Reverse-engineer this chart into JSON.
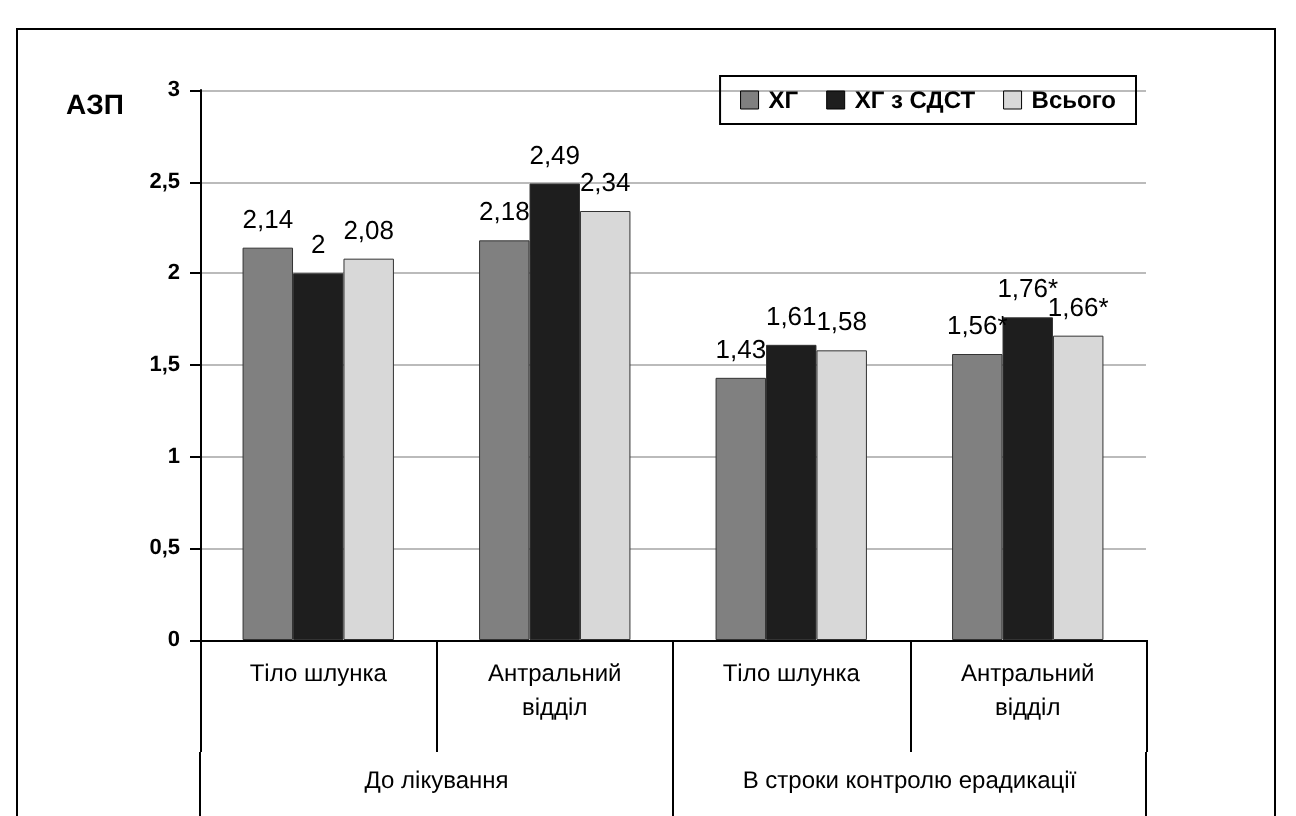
{
  "chart_data": {
    "type": "bar",
    "ylabel": "АЗП",
    "categories": [
      "Тіло шлунка",
      "Антральний відділ",
      "Тіло шлунка",
      "Антральний відділ"
    ],
    "annotations": [
      "До лікування",
      "В строки контролю ерадикації"
    ],
    "series": [
      {
        "name": "ХГ",
        "color": "#808080",
        "values": [
          2.14,
          2.18,
          1.43,
          1.56
        ],
        "value_labels": [
          "2,14",
          "2,18",
          "1,43",
          "1,56*"
        ]
      },
      {
        "name": "ХГ з СДСТ",
        "color": "#1e1e1e",
        "values": [
          2,
          2.49,
          1.61,
          1.76
        ],
        "value_labels": [
          "2",
          "2,49",
          "1,61",
          "1,76*"
        ]
      },
      {
        "name": "Всього",
        "color": "#d8d8d8",
        "values": [
          2.08,
          2.34,
          1.58,
          1.66
        ],
        "value_labels": [
          "2,08",
          "2,34",
          "1,58",
          "1,66*"
        ]
      }
    ],
    "ylim": [
      0,
      3
    ],
    "yticks": [
      0,
      {
        "value": 0.5,
        "label": "0,5"
      },
      1,
      {
        "value": 1.5,
        "label": "1,5"
      },
      2,
      {
        "value": 2.5,
        "label": "2,5"
      },
      3
    ],
    "grid": "y",
    "legend": "top right"
  }
}
